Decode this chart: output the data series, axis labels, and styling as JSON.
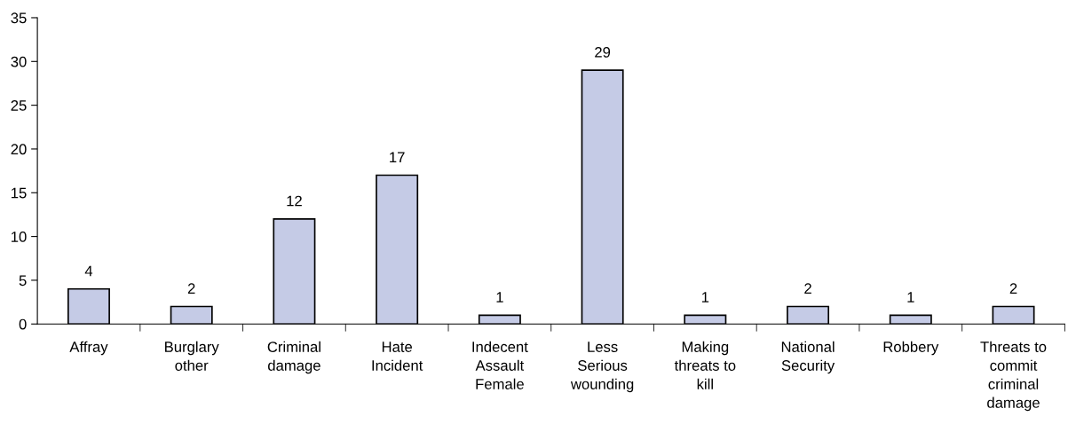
{
  "chart_data": {
    "type": "bar",
    "categories": [
      "Affray",
      "Burglary\nother",
      "Criminal\ndamage",
      "Hate\nIncident",
      "Indecent\nAssault\nFemale",
      "Less\nSerious\nwounding",
      "Making\nthreats to\nkill",
      "National\nSecurity",
      "Robbery",
      "Threats to\ncommit\ncriminal\ndamage"
    ],
    "values": [
      4,
      2,
      12,
      17,
      1,
      29,
      1,
      2,
      1,
      2
    ],
    "color": "#c5cbe6",
    "ylim": [
      0,
      35
    ],
    "yticks": [
      0,
      5,
      10,
      15,
      20,
      25,
      30,
      35
    ],
    "data_labels": true,
    "grid": false
  }
}
